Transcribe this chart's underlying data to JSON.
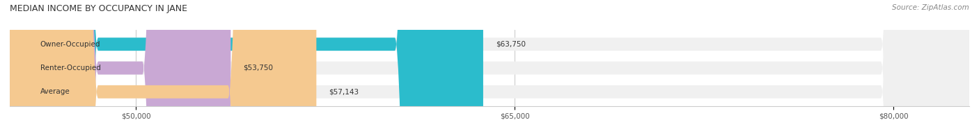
{
  "title": "MEDIAN INCOME BY OCCUPANCY IN JANE",
  "source": "Source: ZipAtlas.com",
  "categories": [
    "Owner-Occupied",
    "Renter-Occupied",
    "Average"
  ],
  "values": [
    63750,
    53750,
    57143
  ],
  "value_labels": [
    "$63,750",
    "$53,750",
    "$57,143"
  ],
  "bar_colors": [
    "#2bbccc",
    "#c9a8d4",
    "#f5c990"
  ],
  "bar_bg_color": "#f0f0f0",
  "xlim_min": 45000,
  "xlim_max": 83000,
  "xticks": [
    50000,
    65000,
    80000
  ],
  "xtick_labels": [
    "$50,000",
    "$65,000",
    "$80,000"
  ],
  "figsize": [
    14.06,
    1.96
  ],
  "dpi": 100,
  "background_color": "#ffffff",
  "title_fontsize": 9,
  "label_fontsize": 7.5,
  "value_fontsize": 7.5,
  "source_fontsize": 7.5,
  "tick_fontsize": 7.5
}
